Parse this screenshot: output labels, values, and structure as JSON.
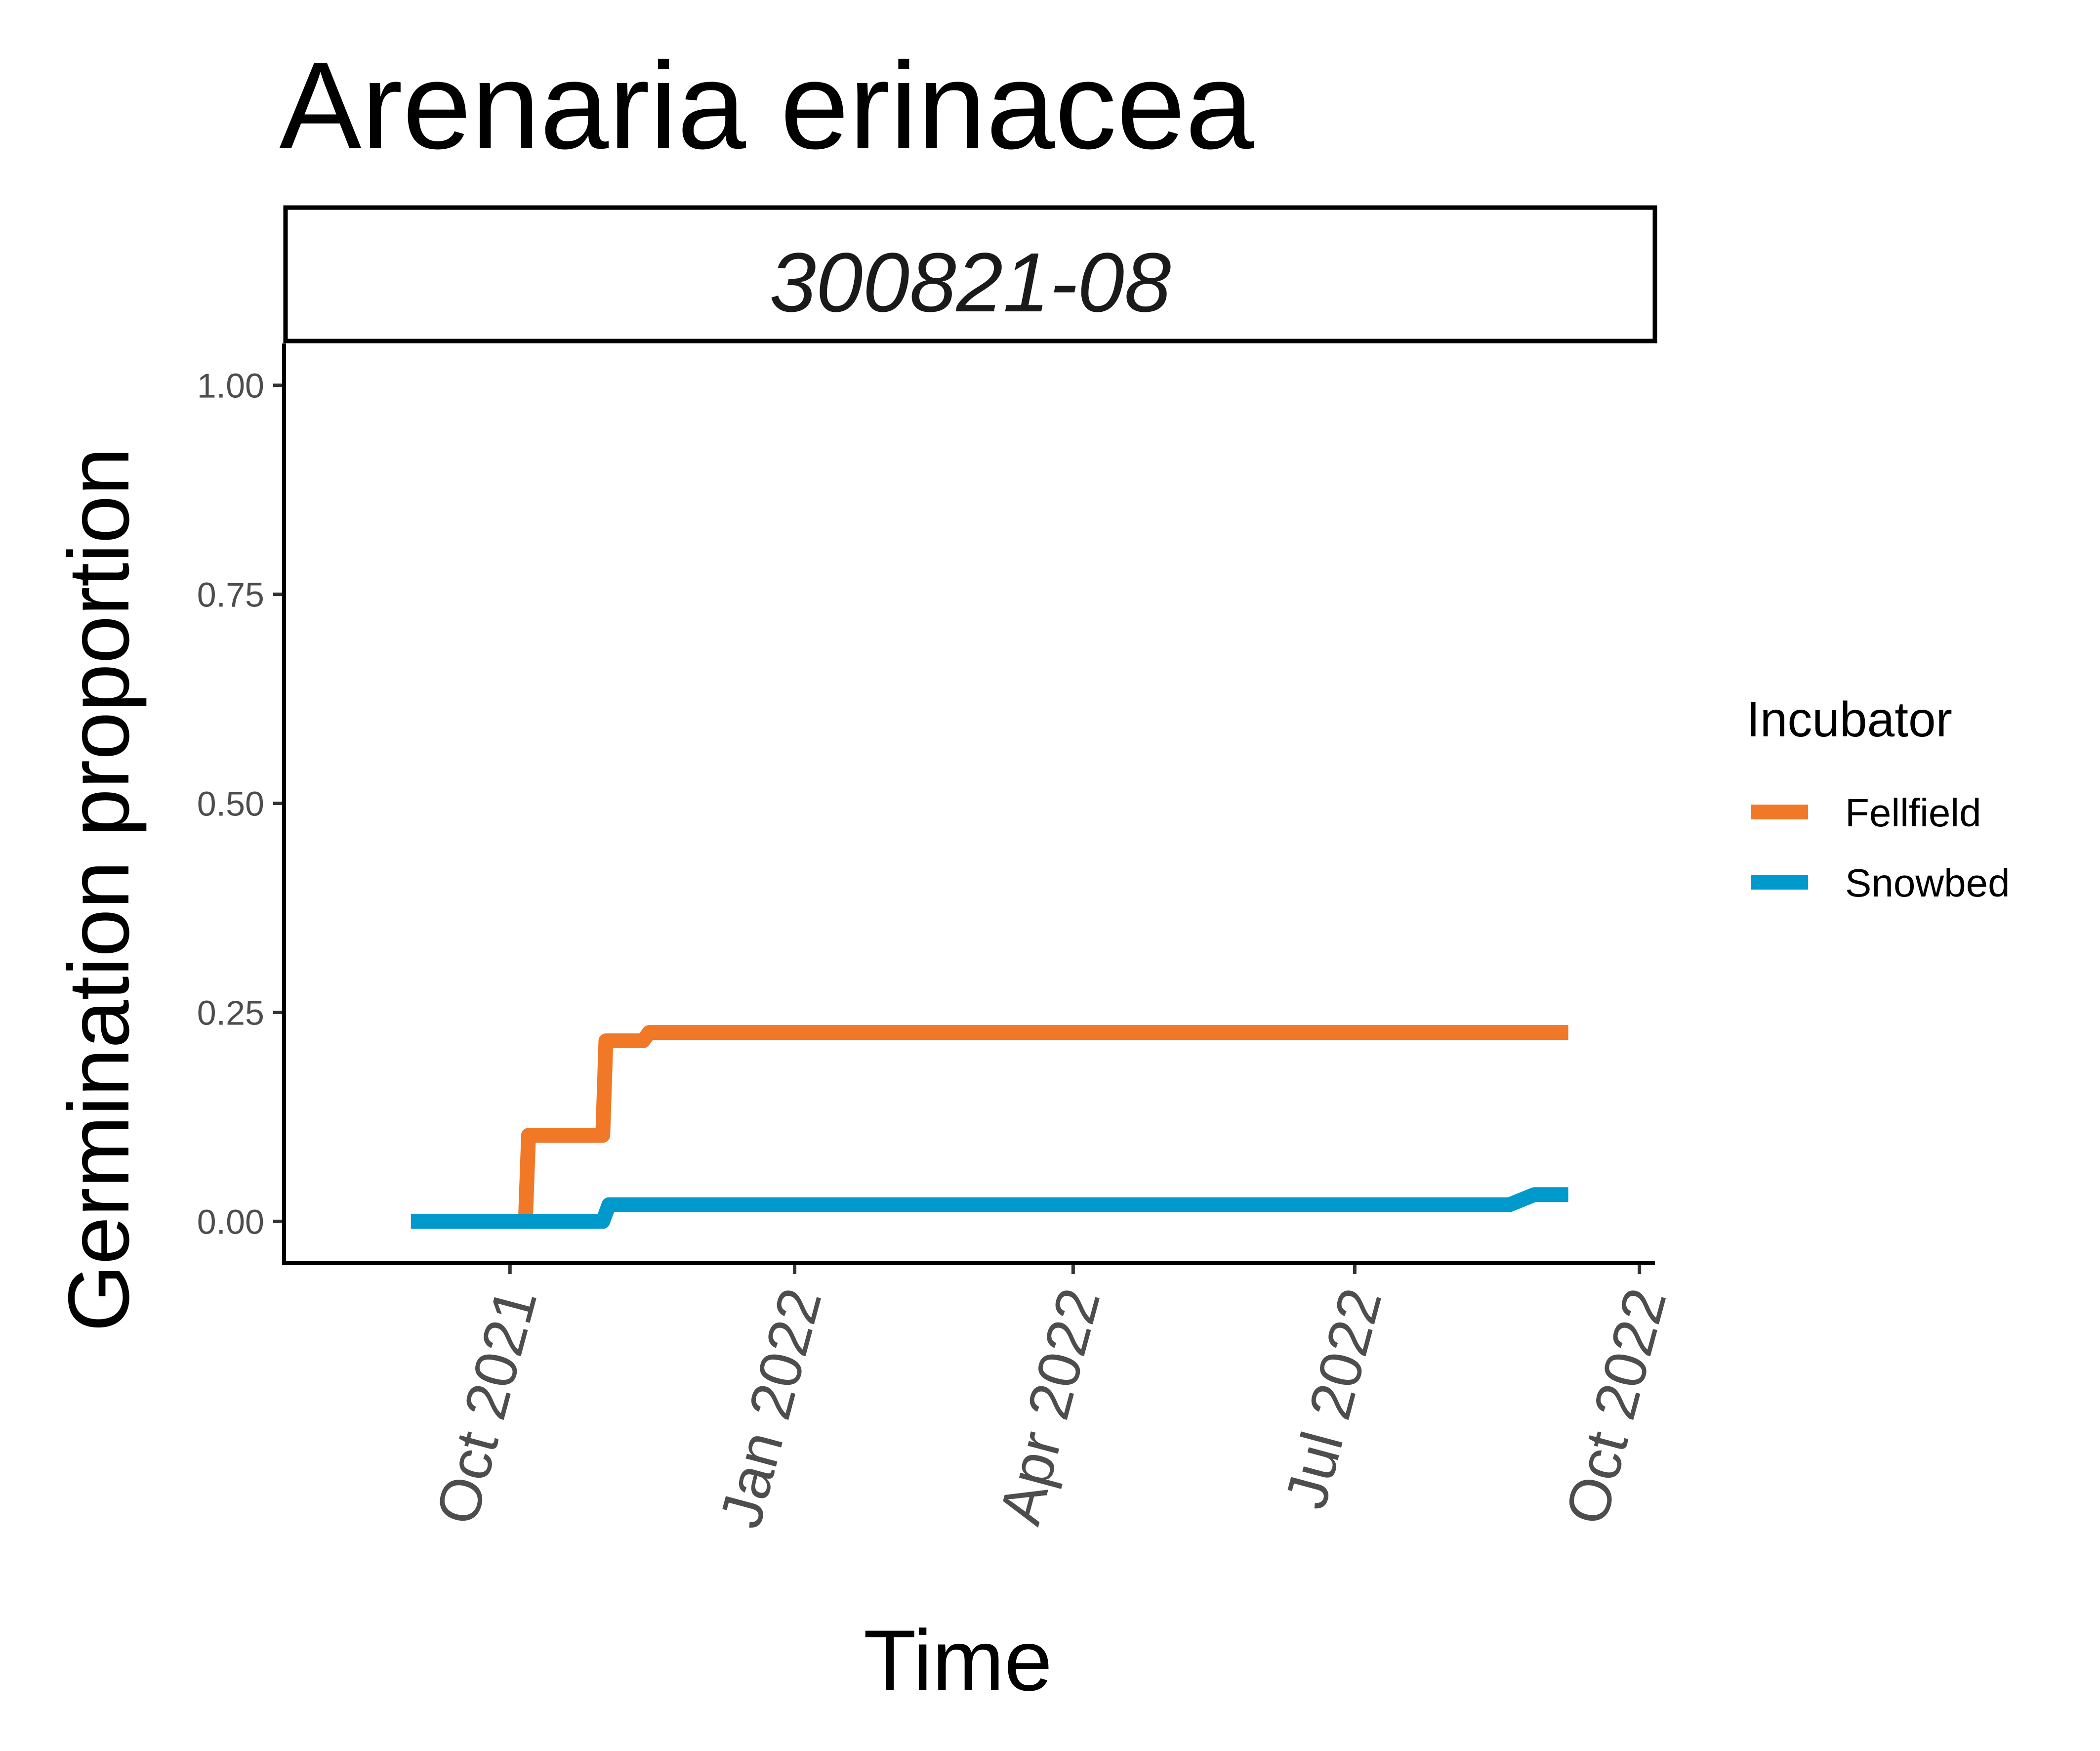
{
  "chart_data": {
    "type": "line",
    "title": "Arenaria erinacea",
    "facet_label": "300821-08",
    "xlabel": "Time",
    "ylabel": "Germination proportion",
    "ylim": [
      -0.05,
      1.05
    ],
    "xlim": [
      "2021-07-20",
      "2022-10-06"
    ],
    "y_ticks": [
      "0.00",
      "0.25",
      "0.50",
      "0.75",
      "1.00"
    ],
    "y_tick_values": [
      0,
      0.25,
      0.5,
      0.75,
      1.0
    ],
    "x_ticks": [
      {
        "date": "2021-10-01",
        "label": "Oct 2021"
      },
      {
        "date": "2022-01-01",
        "label": "Jan 2022"
      },
      {
        "date": "2022-04-01",
        "label": "Apr 2022"
      },
      {
        "date": "2022-07-01",
        "label": "Jul 2022"
      },
      {
        "date": "2022-10-01",
        "label": "Oct 2022"
      }
    ],
    "legend": {
      "title": "Incubator",
      "position": "right"
    },
    "grid": false,
    "series": [
      {
        "name": "Fellfield",
        "color": "#F07826",
        "step": true,
        "points": [
          {
            "x": "2021-08-30",
            "y": 0
          },
          {
            "x": "2021-10-06",
            "y": 0
          },
          {
            "x": "2021-10-07",
            "y": 0.103
          },
          {
            "x": "2021-10-31",
            "y": 0.103
          },
          {
            "x": "2021-11-01",
            "y": 0.216
          },
          {
            "x": "2021-11-13",
            "y": 0.216
          },
          {
            "x": "2021-11-15",
            "y": 0.226
          },
          {
            "x": "2022-09-08",
            "y": 0.226
          }
        ]
      },
      {
        "name": "Snowbed",
        "color": "#0099CC",
        "step": true,
        "points": [
          {
            "x": "2021-08-30",
            "y": 0
          },
          {
            "x": "2021-10-31",
            "y": 0
          },
          {
            "x": "2021-11-02",
            "y": 0.02
          },
          {
            "x": "2022-08-20",
            "y": 0.02
          },
          {
            "x": "2022-08-28",
            "y": 0.032
          },
          {
            "x": "2022-09-08",
            "y": 0.032
          }
        ]
      }
    ]
  }
}
